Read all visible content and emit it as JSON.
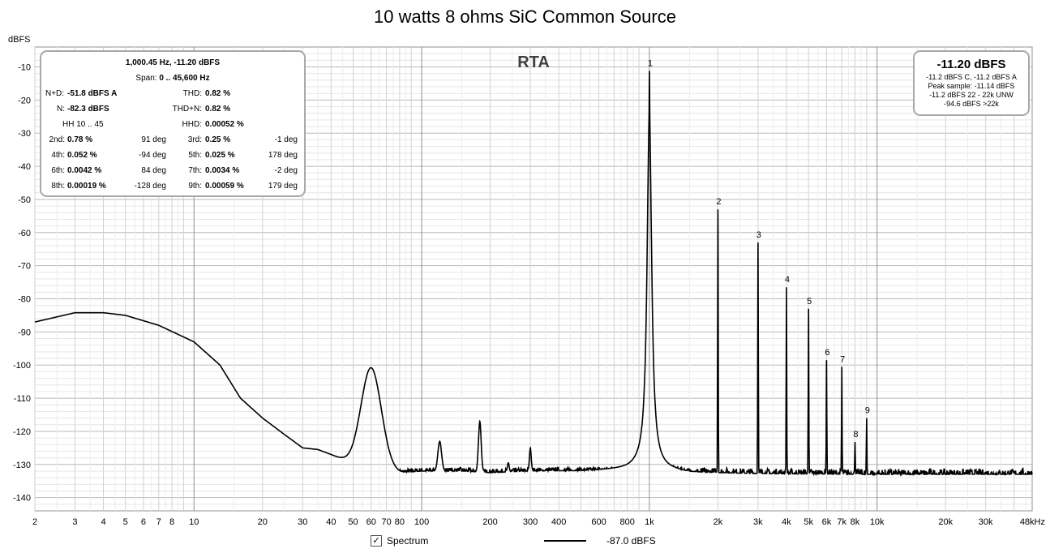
{
  "chart_data": {
    "type": "line",
    "title": "10 watts 8 ohms SiC Common Source",
    "ylabel": "dBFS",
    "xlabel": "",
    "x_scale": "log",
    "xlim": [
      2,
      48000
    ],
    "ylim": [
      -144,
      -4
    ],
    "x_ticks": [
      {
        "v": 2,
        "t": "2"
      },
      {
        "v": 3,
        "t": "3"
      },
      {
        "v": 4,
        "t": "4"
      },
      {
        "v": 5,
        "t": "5"
      },
      {
        "v": 6,
        "t": "6"
      },
      {
        "v": 7,
        "t": "7"
      },
      {
        "v": 8,
        "t": "8"
      },
      {
        "v": 10,
        "t": "10"
      },
      {
        "v": 20,
        "t": "20"
      },
      {
        "v": 30,
        "t": "30"
      },
      {
        "v": 40,
        "t": "40"
      },
      {
        "v": 50,
        "t": "50"
      },
      {
        "v": 60,
        "t": "60"
      },
      {
        "v": 70,
        "t": "70"
      },
      {
        "v": 80,
        "t": "80"
      },
      {
        "v": 100,
        "t": "100"
      },
      {
        "v": 200,
        "t": "200"
      },
      {
        "v": 300,
        "t": "300"
      },
      {
        "v": 400,
        "t": "400"
      },
      {
        "v": 600,
        "t": "600"
      },
      {
        "v": 800,
        "t": "800"
      },
      {
        "v": 1000,
        "t": "1k"
      },
      {
        "v": 2000,
        "t": "2k"
      },
      {
        "v": 3000,
        "t": "3k"
      },
      {
        "v": 4000,
        "t": "4k"
      },
      {
        "v": 5000,
        "t": "5k"
      },
      {
        "v": 6000,
        "t": "6k"
      },
      {
        "v": 7000,
        "t": "7k"
      },
      {
        "v": 8000,
        "t": "8k"
      },
      {
        "v": 10000,
        "t": "10k"
      },
      {
        "v": 20000,
        "t": "20k"
      },
      {
        "v": 30000,
        "t": "30k"
      },
      {
        "v": 48000,
        "t": "48kHz"
      }
    ],
    "y_ticks": [
      -10,
      -20,
      -30,
      -40,
      -50,
      -60,
      -70,
      -80,
      -90,
      -100,
      -110,
      -120,
      -130,
      -140
    ],
    "grid": true,
    "annotation": "RTA",
    "series": [
      {
        "name": "Spectrum",
        "color": "#000000",
        "baseline": [
          [
            2,
            -87
          ],
          [
            3,
            -84.2
          ],
          [
            4,
            -84.2
          ],
          [
            5,
            -85
          ],
          [
            7,
            -88
          ],
          [
            10,
            -93
          ],
          [
            13,
            -100
          ],
          [
            16,
            -110
          ],
          [
            20,
            -116
          ],
          [
            25,
            -121
          ],
          [
            30,
            -125
          ],
          [
            35,
            -125.5
          ],
          [
            40,
            -127
          ],
          [
            45,
            -128.5
          ],
          [
            50,
            -130
          ],
          [
            55,
            -131
          ],
          [
            65,
            -132
          ],
          [
            80,
            -132.5
          ],
          [
            100,
            -132
          ],
          [
            150,
            -132
          ],
          [
            200,
            -132.5
          ],
          [
            300,
            -132
          ],
          [
            500,
            -132
          ],
          [
            800,
            -131.5
          ],
          [
            900,
            -131
          ],
          [
            1100,
            -131.5
          ],
          [
            1500,
            -132.5
          ],
          [
            3000,
            -132.8
          ],
          [
            10000,
            -133
          ],
          [
            48000,
            -133
          ]
        ],
        "peaks": [
          {
            "f": 60,
            "level": -100.8,
            "width": 0.045
          },
          {
            "f": 120,
            "level": -123,
            "width": 0.008
          },
          {
            "f": 180,
            "level": -117,
            "width": 0.006
          },
          {
            "f": 240,
            "level": -129.5,
            "width": 0.004
          },
          {
            "f": 300,
            "level": -125,
            "width": 0.004
          },
          {
            "f": 1000,
            "level": -11.2,
            "width": 0.003
          },
          {
            "f": 2000,
            "level": -53,
            "width": 0.0012
          },
          {
            "f": 3000,
            "level": -63,
            "width": 0.0012
          },
          {
            "f": 4000,
            "level": -76.5,
            "width": 0.0012
          },
          {
            "f": 5000,
            "level": -83,
            "width": 0.0012
          },
          {
            "f": 6000,
            "level": -98.5,
            "width": 0.0012
          },
          {
            "f": 7000,
            "level": -100.5,
            "width": 0.0012
          },
          {
            "f": 8000,
            "level": -123.2,
            "width": 0.0012
          },
          {
            "f": 9000,
            "level": -116,
            "width": 0.0012
          }
        ]
      }
    ],
    "harmonic_markers": [
      {
        "label": "1",
        "f": 1000,
        "level": -11.2
      },
      {
        "label": "2",
        "f": 2000,
        "level": -53
      },
      {
        "label": "3",
        "f": 3000,
        "level": -63
      },
      {
        "label": "4",
        "f": 4000,
        "level": -76.5
      },
      {
        "label": "5",
        "f": 5000,
        "level": -83
      },
      {
        "label": "6",
        "f": 6000,
        "level": -98.5
      },
      {
        "label": "7",
        "f": 7000,
        "level": -100.5
      },
      {
        "label": "8",
        "f": 8000,
        "level": -123.2
      },
      {
        "label": "9",
        "f": 9000,
        "level": -116
      }
    ]
  },
  "measurements": {
    "header1": "1,000.45 Hz, -11.20 dBFS",
    "span_label": "Span:",
    "span_value": "0 .. 45,600 Hz",
    "nd_label": "N+D:",
    "nd_value": "-51.8 dBFS A",
    "thd_label": "THD:",
    "thd_value": "0.82 %",
    "n_label": "N:",
    "n_value": "-82.3 dBFS",
    "thdn_label": "THD+N:",
    "thdn_value": "0.82 %",
    "hh_label": "HH 10 .. 45",
    "hhd_label": "HHD:",
    "hhd_value": "0.00052 %",
    "harmonics": [
      {
        "l1": "2nd:",
        "v1": "0.78 %",
        "p1": "91 deg",
        "l2": "3rd:",
        "v2": "0.25 %",
        "p2": "-1 deg"
      },
      {
        "l1": "4th:",
        "v1": "0.052 %",
        "p1": "-94 deg",
        "l2": "5th:",
        "v2": "0.025 %",
        "p2": "178 deg"
      },
      {
        "l1": "6th:",
        "v1": "0.0042 %",
        "p1": "84 deg",
        "l2": "7th:",
        "v2": "0.0034 %",
        "p2": "-2 deg"
      },
      {
        "l1": "8th:",
        "v1": "0.00019 %",
        "p1": "-128 deg",
        "l2": "9th:",
        "v2": "0.00059 %",
        "p2": "179 deg"
      }
    ]
  },
  "peak_box": {
    "main": "-11.20 dBFS",
    "lines": [
      "-11.2 dBFS C, -11.2 dBFS A",
      "Peak sample: -11.14 dBFS",
      "-11.2 dBFS 22 - 22k UNW",
      "-94.6 dBFS >22k"
    ]
  },
  "legend": {
    "label": "Spectrum",
    "checked": "✓",
    "value": "-87.0 dBFS"
  }
}
